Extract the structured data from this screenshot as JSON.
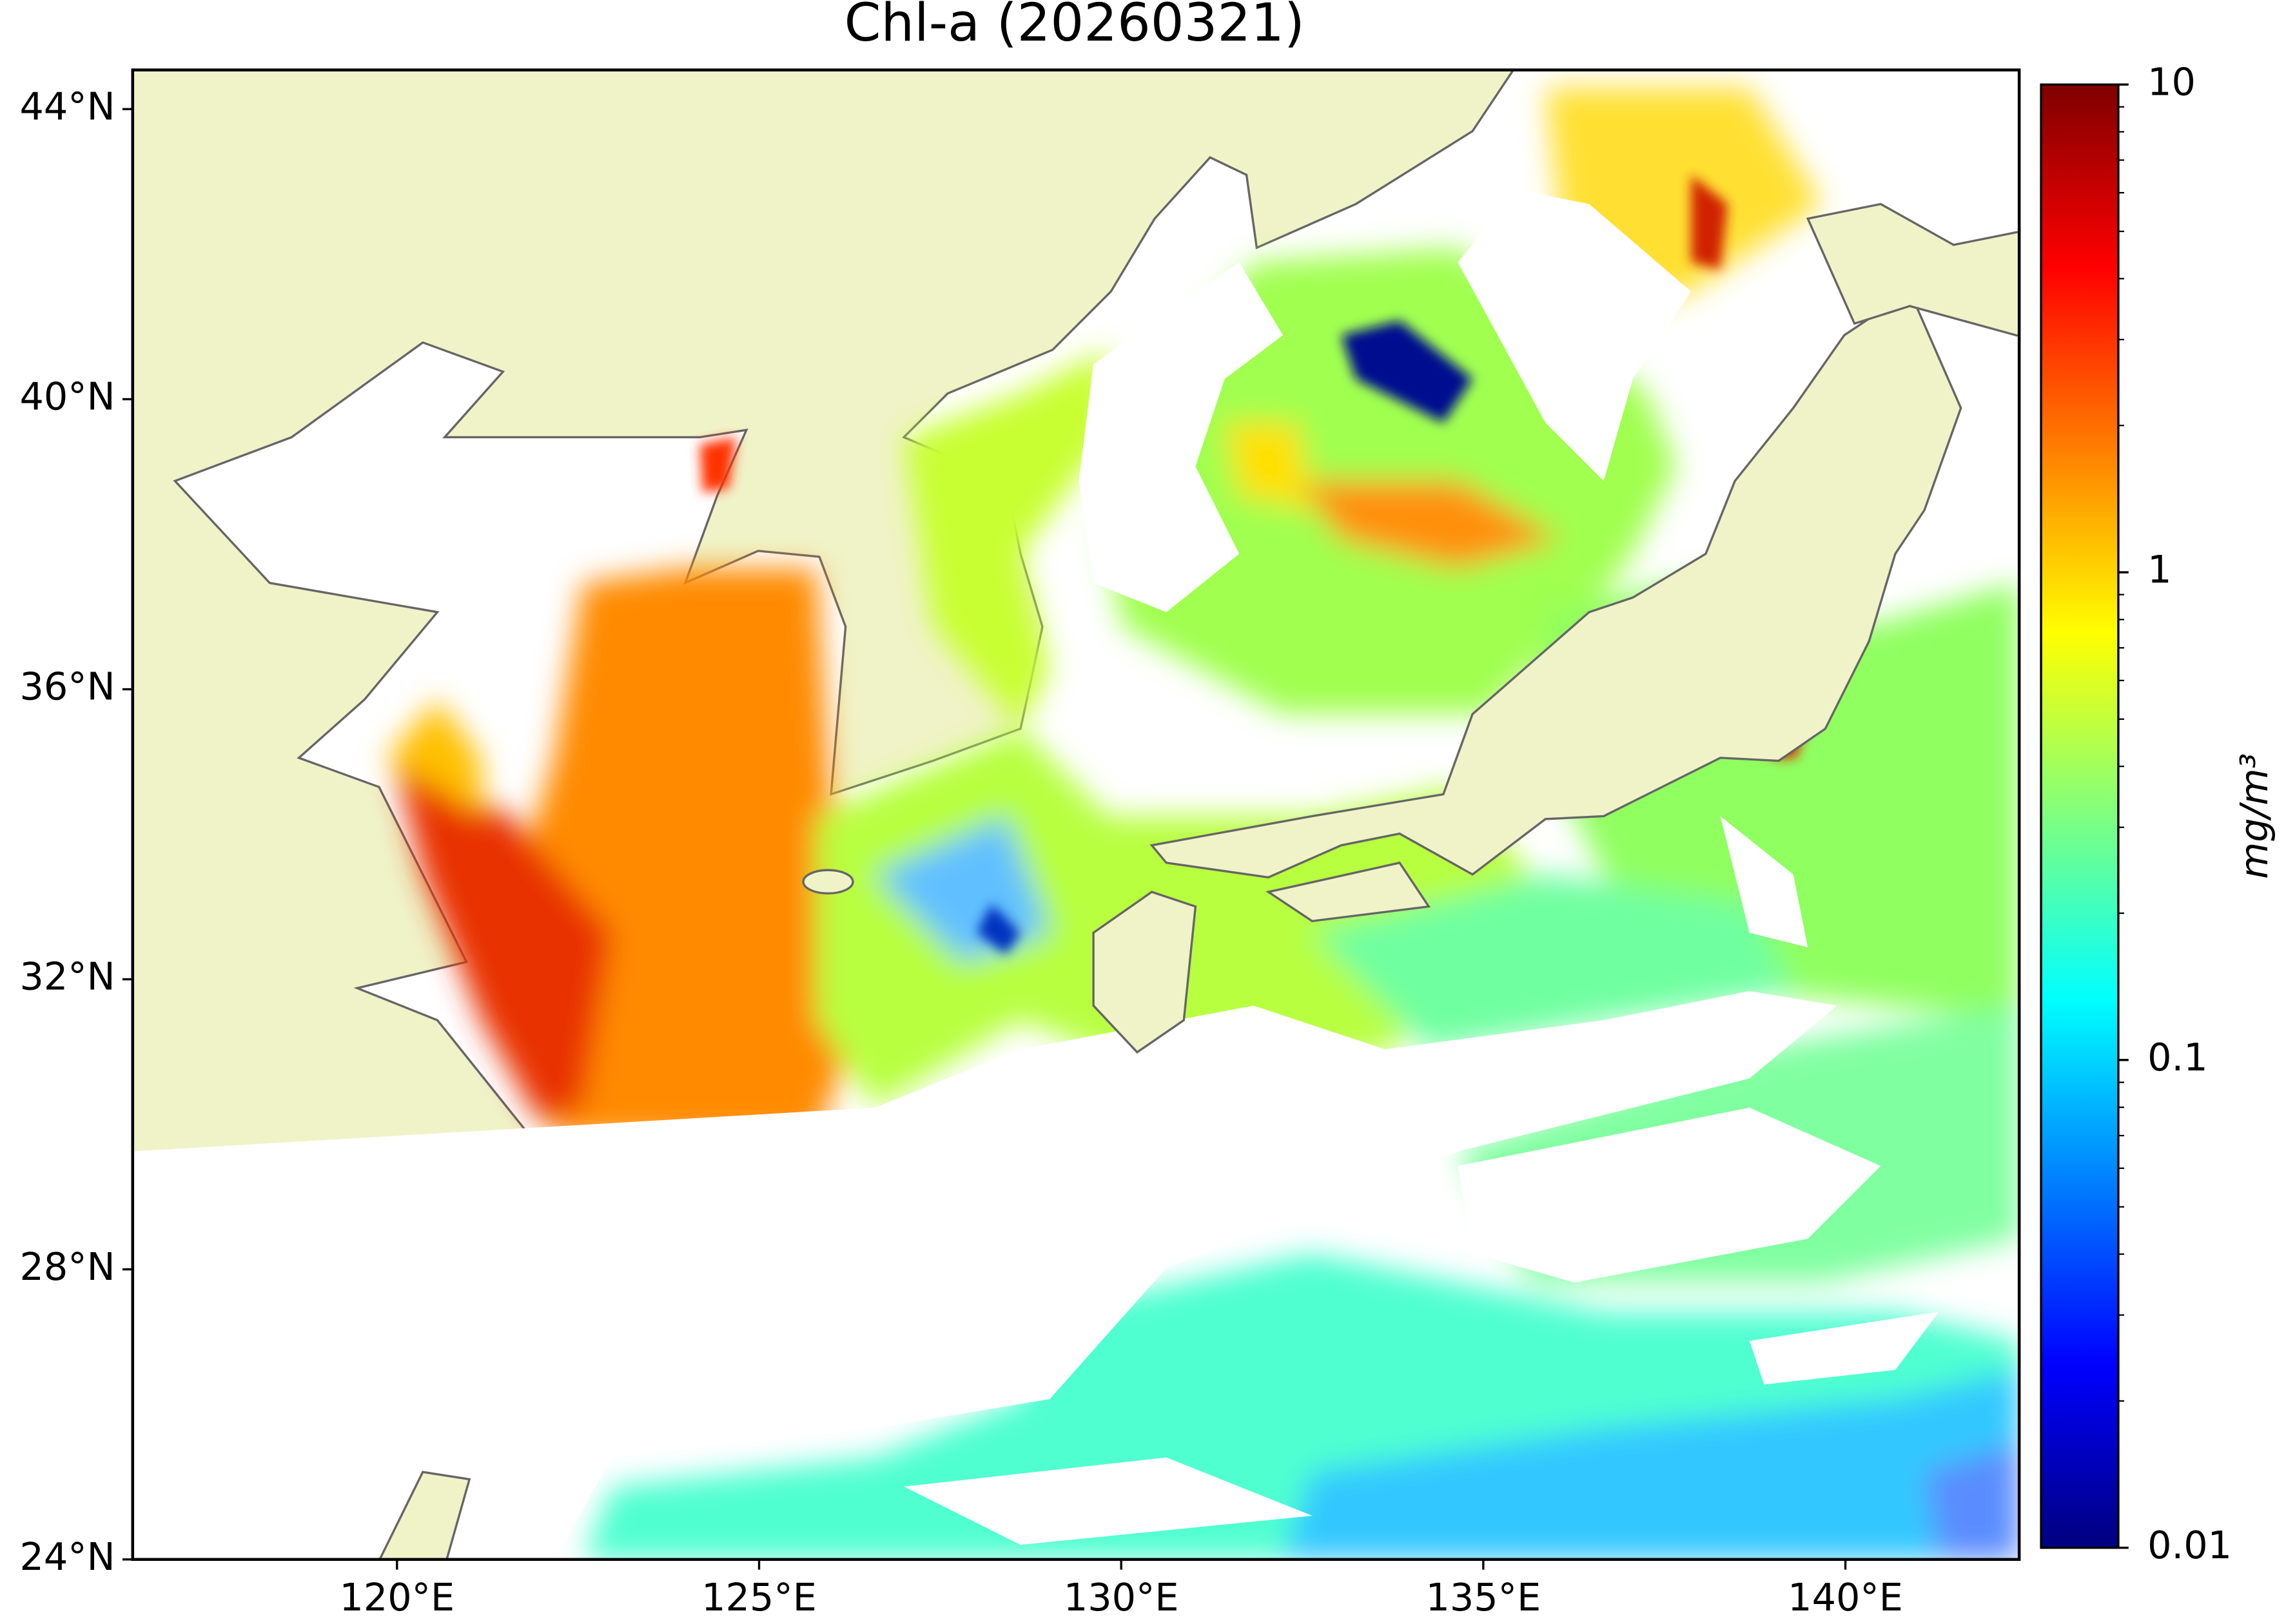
{
  "chart_data": {
    "type": "map",
    "title": "Chl-a (20260321)",
    "xlim": [
      116.35,
      142.4
    ],
    "ylim": [
      24,
      44.54
    ],
    "xticks": [
      {
        "value": 120,
        "label": "120°E"
      },
      {
        "value": 125,
        "label": "125°E"
      },
      {
        "value": 130,
        "label": "130°E"
      },
      {
        "value": 135,
        "label": "135°E"
      },
      {
        "value": 140,
        "label": "140°E"
      }
    ],
    "yticks": [
      {
        "value": 24,
        "label": "24°N"
      },
      {
        "value": 28,
        "label": "28°N"
      },
      {
        "value": 32,
        "label": "32°N"
      },
      {
        "value": 36,
        "label": "36°N"
      },
      {
        "value": 40,
        "label": "40°N"
      },
      {
        "value": 44,
        "label": "44°N"
      }
    ],
    "colorbar": {
      "label": "mg/m³",
      "colormap": "jet",
      "log_scale": true,
      "clim": [
        0.01,
        10
      ],
      "ticks": [
        0.01,
        0.1,
        1,
        10
      ]
    }
  }
}
